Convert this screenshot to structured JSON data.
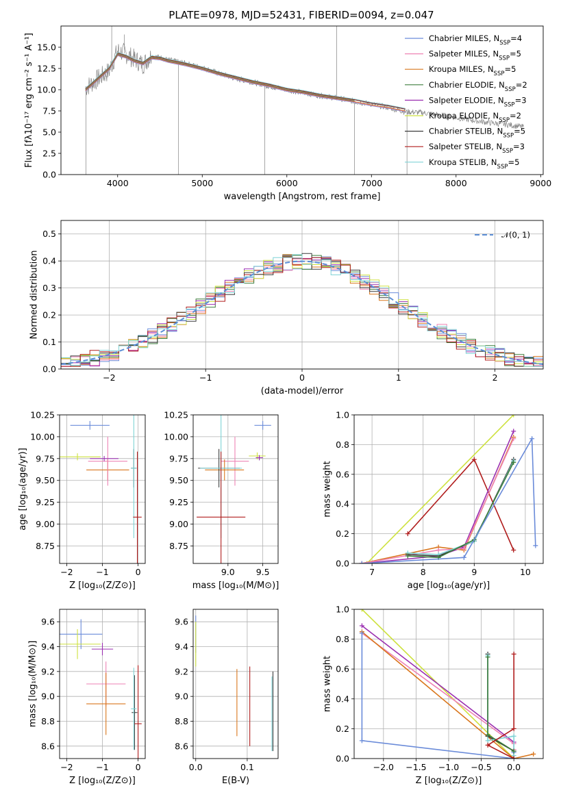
{
  "figure": {
    "title": "PLATE=0978, MJD=52431, FIBERID=0094, z=0.047"
  },
  "colors": {
    "Chabrier MILES": "#6a8bd9",
    "Salpeter MILES": "#ee82b4",
    "Kroupa MILES": "#d9761c",
    "Chabrier ELODIE": "#3b7d3b",
    "Salpeter ELODIE": "#9a2fb0",
    "Kroupa ELODIE": "#cde13d",
    "Chabrier STELIB": "#3b3b3b",
    "Salpeter STELIB": "#b01c1c",
    "Kroupa STELIB": "#7fd3d6",
    "data": "#808080",
    "gaussian": "#5b8ed6"
  },
  "chart_data": [
    {
      "id": "spectrum",
      "type": "line",
      "title": "PLATE=0978, MJD=52431, FIBERID=0094, z=0.047",
      "xlabel": "wavelength [Angstrom, rest frame]",
      "ylabel": "Flux [fλ10⁻¹⁷ erg cm⁻² s⁻¹ A⁻¹]",
      "xlim": [
        3330,
        9030
      ],
      "ylim": [
        0,
        17.5
      ],
      "xticks": [
        4000,
        5000,
        6000,
        7000,
        8000,
        9000
      ],
      "yticks": [
        0.0,
        2.5,
        5.0,
        7.5,
        10.0,
        12.5,
        15.0
      ],
      "grid": false,
      "legend_position": "top-right",
      "legend": [
        {
          "series": "Chabrier MILES",
          "nssp": "4"
        },
        {
          "series": "Salpeter MILES",
          "nssp": "5"
        },
        {
          "series": "Kroupa MILES",
          "nssp": "5"
        },
        {
          "series": "Chabrier ELODIE",
          "nssp": "2"
        },
        {
          "series": "Salpeter ELODIE",
          "nssp": "3"
        },
        {
          "series": "Kroupa ELODIE",
          "nssp": "2"
        },
        {
          "series": "Chabrier STELIB",
          "nssp": "5"
        },
        {
          "series": "Salpeter STELIB",
          "nssp": "3"
        },
        {
          "series": "Kroupa STELIB",
          "nssp": "5"
        }
      ],
      "series": [
        {
          "name": "data",
          "x": [
            3620,
            3700,
            3800,
            3900,
            4000,
            4100,
            4200,
            4300,
            4400,
            4500,
            4600,
            4800,
            5000,
            5200,
            5400,
            5600,
            5800,
            6000,
            6200,
            6400,
            6600,
            6800,
            7000,
            7200,
            7400,
            7600,
            7800,
            8000,
            8200,
            8400,
            8600,
            8800
          ],
          "y": [
            10.2,
            10.8,
            11.5,
            12.2,
            14.6,
            14.2,
            13.6,
            13.0,
            14.0,
            13.8,
            13.5,
            13.1,
            12.6,
            11.9,
            11.3,
            10.9,
            10.4,
            10.0,
            9.6,
            9.3,
            9.0,
            8.6,
            8.3,
            7.9,
            7.4,
            7.3,
            7.0,
            6.7,
            6.4,
            6.1,
            5.9,
            5.6
          ]
        },
        {
          "name": "model",
          "x": [
            3620,
            3700,
            3800,
            3900,
            4000,
            4100,
            4200,
            4300,
            4400,
            4500,
            4600,
            4800,
            5000,
            5200,
            5400,
            5600,
            5800,
            6000,
            6200,
            6400,
            6600,
            6800,
            7000,
            7200,
            7400
          ],
          "y": [
            10.0,
            10.7,
            11.6,
            12.5,
            14.2,
            13.9,
            13.4,
            13.1,
            13.8,
            13.7,
            13.4,
            13.0,
            12.5,
            11.9,
            11.4,
            10.9,
            10.5,
            10.0,
            9.7,
            9.3,
            9.0,
            8.7,
            8.3,
            8.0,
            7.6
          ]
        }
      ]
    },
    {
      "id": "residuals",
      "type": "line",
      "xlabel": "(data-model)/error",
      "ylabel": "Normed distribution",
      "xlim": [
        -2.5,
        2.5
      ],
      "ylim": [
        0,
        0.55
      ],
      "xticks": [
        -2,
        -1,
        0,
        1,
        2
      ],
      "yticks": [
        0.0,
        0.1,
        0.2,
        0.3,
        0.4,
        0.5
      ],
      "grid": true,
      "legend_position": "top-right",
      "legend_label": "𝒩(0, 1)",
      "series": [
        {
          "name": "𝒩(0, 1)",
          "mu": 0,
          "sigma": 1
        }
      ]
    },
    {
      "id": "age-vs-Z",
      "type": "scatter",
      "xlabel": "Z [log₁₀(Z/Z⊙)]",
      "ylabel": "age  [log₁₀(age/yr)]",
      "xlim": [
        -2.2,
        0.2
      ],
      "ylim": [
        8.55,
        10.25
      ],
      "xticks": [
        -2,
        -1,
        0
      ],
      "yticks": [
        8.75,
        9.0,
        9.25,
        9.5,
        9.75,
        10.0,
        10.25
      ],
      "grid": true,
      "points": [
        {
          "series": "Chabrier MILES",
          "x": -1.35,
          "y": 10.13,
          "xerr": 0.55,
          "yerr": 0.05
        },
        {
          "series": "Kroupa MILES",
          "x": -0.85,
          "y": 9.62,
          "xerr": 0.6,
          "yerr": 0.12
        },
        {
          "series": "Salpeter MILES",
          "x": -0.85,
          "y": 9.72,
          "xerr": 0.55,
          "yerr": 0.28
        },
        {
          "series": "Kroupa ELODIE",
          "x": -1.7,
          "y": 9.77,
          "xerr": 0.65,
          "yerr": 0.04
        },
        {
          "series": "Salpeter ELODIE",
          "x": -0.95,
          "y": 9.75,
          "xerr": 0.4,
          "yerr": 0.03
        },
        {
          "series": "Chabrier STELIB",
          "x": -0.12,
          "y": 9.64,
          "xerr": 0.08,
          "yerr": 0.22
        },
        {
          "series": "Kroupa STELIB",
          "x": -0.12,
          "y": 9.64,
          "xerr": 0.08,
          "yerr": 0.8
        },
        {
          "series": "Salpeter STELIB",
          "x": -0.02,
          "y": 9.08,
          "xerr": 0.12,
          "yerr": 0.75
        }
      ]
    },
    {
      "id": "age-vs-mass",
      "type": "scatter",
      "xlabel": "mass [log₁₀(M/M⊙)]",
      "ylabel": "",
      "xlim": [
        8.5,
        9.72
      ],
      "ylim": [
        8.55,
        10.25
      ],
      "xticks": [
        9.0,
        9.5
      ],
      "yticks": [
        8.75,
        9.0,
        9.25,
        9.5,
        9.75,
        10.0,
        10.25
      ],
      "grid": true,
      "points": [
        {
          "series": "Chabrier MILES",
          "x": 9.5,
          "y": 10.13,
          "xerr": 0.12,
          "yerr": 0.05
        },
        {
          "series": "Kroupa ELODIE",
          "x": 9.42,
          "y": 9.78,
          "xerr": 0.12,
          "yerr": 0.04
        },
        {
          "series": "Salpeter ELODIE",
          "x": 9.45,
          "y": 9.76,
          "xerr": 0.05,
          "yerr": 0.03
        },
        {
          "series": "Salpeter MILES",
          "x": 9.1,
          "y": 9.72,
          "xerr": 0.2,
          "yerr": 0.28
        },
        {
          "series": "Kroupa MILES",
          "x": 8.95,
          "y": 9.62,
          "xerr": 0.28,
          "yerr": 0.12
        },
        {
          "series": "Chabrier STELIB",
          "x": 8.87,
          "y": 9.64,
          "xerr": 0.3,
          "yerr": 0.22
        },
        {
          "series": "Kroupa STELIB",
          "x": 8.9,
          "y": 9.64,
          "xerr": 0.3,
          "yerr": 0.8
        },
        {
          "series": "Salpeter STELIB",
          "x": 8.9,
          "y": 9.08,
          "xerr": 0.35,
          "yerr": 0.75
        }
      ]
    },
    {
      "id": "weight-vs-age",
      "type": "line",
      "xlabel": "age  [log₁₀(age/yr)]",
      "ylabel": "mass weight",
      "xlim": [
        6.65,
        10.35
      ],
      "ylim": [
        0,
        1
      ],
      "xticks": [
        7,
        8,
        9,
        10
      ],
      "yticks": [
        0.0,
        0.2,
        0.4,
        0.6,
        0.8,
        1.0
      ],
      "grid": true,
      "series": [
        {
          "name": "Kroupa ELODIE",
          "x": [
            6.9,
            9.77
          ],
          "y": [
            0.0,
            1.0
          ]
        },
        {
          "name": "Salpeter STELIB",
          "x": [
            7.7,
            9.0,
            9.77
          ],
          "y": [
            0.2,
            0.7,
            0.09
          ]
        },
        {
          "name": "Salpeter ELODIE",
          "x": [
            6.8,
            8.3,
            8.8,
            9.77
          ],
          "y": [
            0.0,
            0.05,
            0.11,
            0.89
          ]
        },
        {
          "name": "Kroupa MILES",
          "x": [
            6.8,
            8.3,
            8.8,
            9.77
          ],
          "y": [
            0.0,
            0.11,
            0.09,
            0.85
          ]
        },
        {
          "name": "Salpeter MILES",
          "x": [
            6.8,
            8.3,
            8.8,
            9.77
          ],
          "y": [
            0.0,
            0.09,
            0.1,
            0.84
          ]
        },
        {
          "name": "Chabrier STELIB",
          "x": [
            7.7,
            8.3,
            9.0,
            9.77
          ],
          "y": [
            0.06,
            0.05,
            0.15,
            0.7
          ]
        },
        {
          "name": "Kroupa STELIB",
          "x": [
            7.7,
            8.3,
            9.0,
            9.77
          ],
          "y": [
            0.07,
            0.06,
            0.15,
            0.69
          ]
        },
        {
          "name": "Chabrier ELODIE",
          "x": [
            7.7,
            8.3,
            9.0,
            9.77
          ],
          "y": [
            0.05,
            0.04,
            0.16,
            0.68
          ]
        },
        {
          "name": "Chabrier MILES",
          "x": [
            6.8,
            8.8,
            10.13,
            10.2
          ],
          "y": [
            0.0,
            0.04,
            0.84,
            0.12
          ]
        }
      ]
    },
    {
      "id": "mass-vs-Z",
      "type": "scatter",
      "xlabel": "Z [log₁₀(Z/Z⊙)]",
      "ylabel": "mass [log₁₀(M/M⊙)]",
      "xlim": [
        -2.2,
        0.2
      ],
      "ylim": [
        8.5,
        9.7
      ],
      "xticks": [
        -2,
        -1,
        0
      ],
      "yticks": [
        8.6,
        8.8,
        9.0,
        9.2,
        9.4,
        9.6
      ],
      "grid": true,
      "points": [
        {
          "series": "Chabrier MILES",
          "x": -1.6,
          "y": 9.5,
          "xerr": 0.6,
          "yerr": 0.12
        },
        {
          "series": "Kroupa ELODIE",
          "x": -1.7,
          "y": 9.42,
          "xerr": 0.65,
          "yerr": 0.12
        },
        {
          "series": "Salpeter ELODIE",
          "x": -1.0,
          "y": 9.38,
          "xerr": 0.3,
          "yerr": 0.05
        },
        {
          "series": "Salpeter MILES",
          "x": -0.9,
          "y": 9.1,
          "xerr": 0.55,
          "yerr": 0.18
        },
        {
          "series": "Kroupa MILES",
          "x": -0.9,
          "y": 8.94,
          "xerr": 0.55,
          "yerr": 0.25
        },
        {
          "series": "Chabrier STELIB",
          "x": -0.1,
          "y": 8.87,
          "xerr": 0.08,
          "yerr": 0.3
        },
        {
          "series": "Kroupa STELIB",
          "x": -0.12,
          "y": 8.9,
          "xerr": 0.08,
          "yerr": 0.33
        },
        {
          "series": "Salpeter STELIB",
          "x": 0.0,
          "y": 8.78,
          "xerr": 0.1,
          "yerr": 0.47
        }
      ]
    },
    {
      "id": "mass-vs-EBV",
      "type": "scatter",
      "xlabel": "E(B-V)",
      "ylabel": "",
      "xlim": [
        -0.005,
        0.16
      ],
      "ylim": [
        8.5,
        9.7
      ],
      "xticks": [
        0.0,
        0.1
      ],
      "yticks": [
        8.6,
        8.8,
        9.0,
        9.2,
        9.4,
        9.6
      ],
      "grid": true,
      "points": [
        {
          "series": "Chabrier MILES",
          "x": 0.0,
          "y": 9.5,
          "xerr": 0.0,
          "yerr": 0.15
        },
        {
          "series": "Kroupa ELODIE",
          "x": 0.0,
          "y": 9.42,
          "xerr": 0.0,
          "yerr": 0.18
        },
        {
          "series": "Kroupa MILES",
          "x": 0.08,
          "y": 8.95,
          "xerr": 0.0,
          "yerr": 0.27
        },
        {
          "series": "Salpeter STELIB",
          "x": 0.105,
          "y": 8.92,
          "xerr": 0.0,
          "yerr": 0.32
        },
        {
          "series": "Chabrier STELIB",
          "x": 0.15,
          "y": 8.88,
          "xerr": 0.0,
          "yerr": 0.32
        },
        {
          "series": "Kroupa STELIB",
          "x": 0.148,
          "y": 8.86,
          "xerr": 0.0,
          "yerr": 0.3
        }
      ]
    },
    {
      "id": "weight-vs-Z",
      "type": "line",
      "xlabel": "Z [log₁₀(Z/Z⊙)]",
      "ylabel": "mass weight",
      "xlim": [
        -2.45,
        0.45
      ],
      "ylim": [
        0,
        1
      ],
      "xticks": [
        -2.0,
        -1.5,
        -1.0,
        -0.5,
        0.0
      ],
      "yticks": [
        0.0,
        0.2,
        0.4,
        0.6,
        0.8,
        1.0
      ],
      "grid": true,
      "series": [
        {
          "name": "Kroupa ELODIE",
          "x": [
            -2.33,
            0.0
          ],
          "y": [
            1.0,
            0.0
          ]
        },
        {
          "name": "Salpeter ELODIE",
          "x": [
            -2.33,
            0.0,
            0.0
          ],
          "y": [
            0.89,
            0.11,
            0.0
          ]
        },
        {
          "name": "Salpeter MILES",
          "x": [
            -2.33,
            0.0,
            0.0
          ],
          "y": [
            0.84,
            0.1,
            0.06
          ]
        },
        {
          "name": "Kroupa MILES",
          "x": [
            -2.33,
            0.0,
            0.3
          ],
          "y": [
            0.85,
            0.0,
            0.03
          ]
        },
        {
          "name": "Chabrier MILES",
          "x": [
            -2.33,
            -2.33,
            0.0,
            0.0
          ],
          "y": [
            0.84,
            0.12,
            0.0,
            0.04
          ]
        },
        {
          "name": "Chabrier STELIB",
          "x": [
            -0.4,
            -0.4,
            0.0,
            0.0
          ],
          "y": [
            0.7,
            0.15,
            0.05,
            0.0
          ]
        },
        {
          "name": "Kroupa STELIB",
          "x": [
            -0.4,
            -0.4,
            0.0,
            0.0
          ],
          "y": [
            0.69,
            0.12,
            0.15,
            0.02
          ]
        },
        {
          "name": "Chabrier ELODIE",
          "x": [
            -0.4,
            -0.4,
            0.0
          ],
          "y": [
            0.68,
            0.16,
            0.05
          ]
        },
        {
          "name": "Salpeter STELIB",
          "x": [
            0.0,
            0.0,
            -0.4,
            0.0
          ],
          "y": [
            0.7,
            0.2,
            0.09,
            0.0
          ]
        }
      ]
    }
  ]
}
